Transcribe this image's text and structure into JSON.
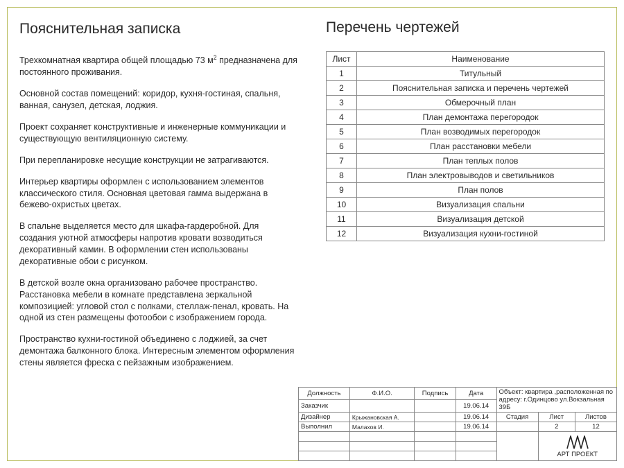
{
  "left": {
    "title": "Пояснительная записка",
    "p1a": "Трехкомнатная квартира общей площадью 73 м",
    "p1b": " предназначена для постоянного проживания.",
    "p2": "Основной состав помещений: коридор, кухня-гостиная, спальня, ванная, санузел, детская, лоджия.",
    "p3": "Проект сохраняет конструктивные и инженерные коммуникации и существующую вентиляционную систему.",
    "p4": "При перепланировке несущие конструкции не затрагиваются.",
    "p5": "Интерьер квартиры оформлен с использованием элементов классического стиля. Основная цветовая гамма выдержана в бежево-охристых цветах.",
    "p6": "В спальне выделяется место для шкафа-гардеробной. Для создания уютной атмосферы напротив кровати возводиться декоративный камин. В оформлении стен использованы декоративные обои с рисунком.",
    "p7": "В детской возле окна организовано рабочее пространство. Расстановка мебели в комнате представлена зеркальной композицией: угловой стол с полками, стеллаж-пенал, кровать. На одной из стен размещены фотообои с изображением города.",
    "p8": "Пространство кухни-гостиной объединено с лоджией, за счет демонтажа балконного блока. Интересным элементом оформления стены является фреска с пейзажным изображением."
  },
  "right": {
    "title": "Перечень чертежей",
    "h1": "Лист",
    "h2": "Наименование",
    "rows": [
      {
        "n": "1",
        "t": "Титульный"
      },
      {
        "n": "2",
        "t": "Пояснительная записка и перечень чертежей"
      },
      {
        "n": "3",
        "t": "Обмерочный план"
      },
      {
        "n": "4",
        "t": "План демонтажа перегородок"
      },
      {
        "n": "5",
        "t": "План возводимых перегородок"
      },
      {
        "n": "6",
        "t": "План расстановки мебели"
      },
      {
        "n": "7",
        "t": "План теплых полов"
      },
      {
        "n": "8",
        "t": "План электровыводов и светильников"
      },
      {
        "n": "9",
        "t": "План полов"
      },
      {
        "n": "10",
        "t": "Визуализация спальни"
      },
      {
        "n": "11",
        "t": "Визуализация детской"
      },
      {
        "n": "12",
        "t": "Визуализация кухни-гостиной"
      }
    ]
  },
  "tb": {
    "h_role": "Должность",
    "h_fio": "Ф.И.О.",
    "h_sign": "Подпись",
    "h_date": "Дата",
    "r1_role": "Заказчик",
    "r1_date": "19.06.14",
    "r2_role": "Дизайнер",
    "r2_fio": "Крыжановская А.",
    "r2_date": "19.06.14",
    "r3_role": "Выполнил",
    "r3_fio": "Малахов И.",
    "r3_date": "19.06.14",
    "object_label": "Объект: квартира ,расположенная по адресу: г.Одинцово ул.Вокзальная 39Б",
    "stage": "Стадия",
    "sheet": "Лист",
    "sheets": "Листов",
    "sheet_n": "2",
    "sheets_n": "12",
    "logo": "АРТ ПРОЕКТ"
  },
  "style": {
    "frame_color": "#b9bd5d",
    "border_color": "#888888",
    "text_color": "#2a2a2a",
    "bg": "#ffffff",
    "heading_fontsize_pt": 16,
    "body_fontsize_pt": 9.5,
    "table_fontsize_pt": 9,
    "titleblock_fontsize_pt": 7.5
  }
}
